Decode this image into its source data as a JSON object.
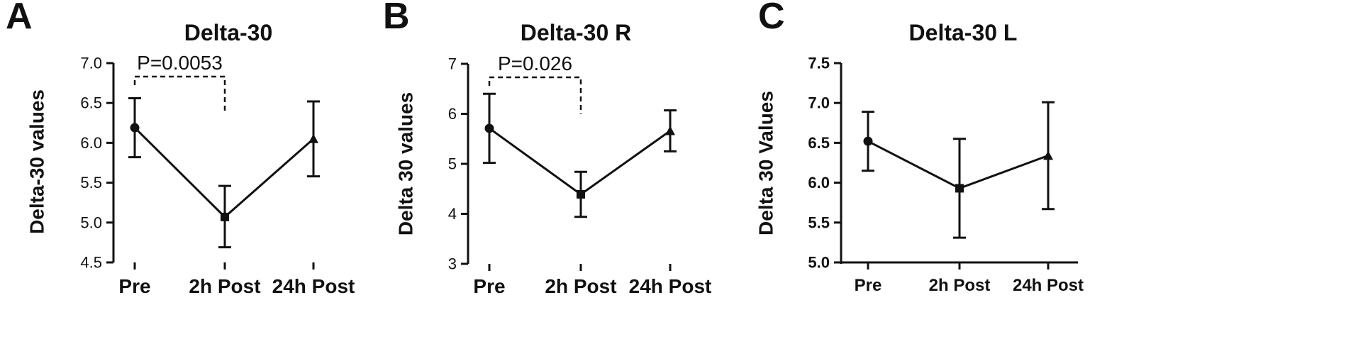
{
  "panels": [
    {
      "letter": "A",
      "chart_data": {
        "type": "line",
        "title": "Delta-30",
        "ylabel": "Delta-30 values",
        "xlabel": "",
        "categories": [
          "Pre",
          "2h Post",
          "24h Post"
        ],
        "series": [
          {
            "values": [
              6.19,
              5.07,
              6.05
            ],
            "err_low": [
              5.82,
              4.69,
              5.58
            ],
            "err_high": [
              6.56,
              5.46,
              6.52
            ],
            "markers": [
              "circle",
              "square",
              "triangle"
            ]
          }
        ],
        "ylim": [
          4.5,
          7.0
        ],
        "yticks": [
          "4.5",
          "5.0",
          "5.5",
          "6.0",
          "6.5",
          "7.0"
        ],
        "grid": false,
        "annotation": {
          "text": "P=0.0053",
          "from": "Pre",
          "to": "2h Post"
        }
      }
    },
    {
      "letter": "B",
      "chart_data": {
        "type": "line",
        "title": "Delta-30 R",
        "ylabel": "Delta 30 values",
        "xlabel": "",
        "categories": [
          "Pre",
          "2h Post",
          "24h Post"
        ],
        "series": [
          {
            "values": [
              5.71,
              4.39,
              5.66
            ],
            "err_low": [
              5.02,
              3.94,
              5.25
            ],
            "err_high": [
              6.4,
              4.84,
              6.07
            ],
            "markers": [
              "circle",
              "square",
              "triangle"
            ]
          }
        ],
        "ylim": [
          3,
          7
        ],
        "yticks": [
          "3",
          "4",
          "5",
          "6",
          "7"
        ],
        "grid": false,
        "annotation": {
          "text": "P=0.026",
          "from": "Pre",
          "to": "2h Post"
        }
      }
    },
    {
      "letter": "C",
      "chart_data": {
        "type": "line",
        "title": "Delta-30 L",
        "ylabel": "Delta 30 Values",
        "xlabel": "",
        "categories": [
          "Pre",
          "2h Post",
          "24h Post"
        ],
        "series": [
          {
            "values": [
              6.52,
              5.93,
              6.34
            ],
            "err_low": [
              6.15,
              5.31,
              5.67
            ],
            "err_high": [
              6.89,
              6.55,
              7.01
            ],
            "markers": [
              "circle",
              "square",
              "triangle"
            ]
          }
        ],
        "ylim": [
          5.0,
          7.5
        ],
        "yticks": [
          "5.0",
          "5.5",
          "6.0",
          "6.5",
          "7.0",
          "7.5"
        ],
        "grid": false,
        "annotation": null
      }
    }
  ]
}
